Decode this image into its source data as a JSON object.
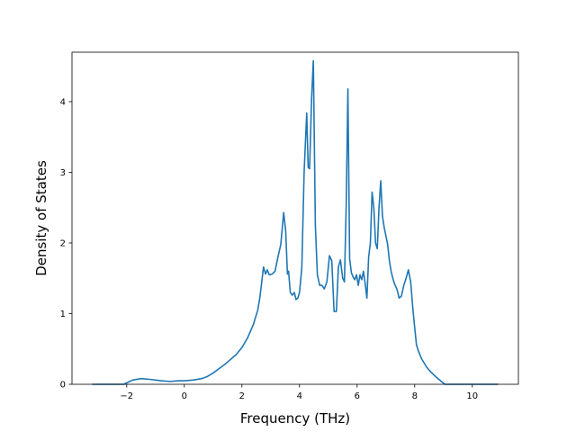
{
  "chart_data": {
    "type": "line",
    "title": "",
    "xlabel": "Frequency (THz)",
    "ylabel": "Density of States",
    "xlim": [
      -3.9,
      11.6
    ],
    "ylim": [
      0,
      4.7
    ],
    "xticks": [
      -2,
      0,
      2,
      4,
      6,
      8,
      10
    ],
    "yticks": [
      0,
      1,
      2,
      3,
      4
    ],
    "xtick_labels": [
      "−2",
      "0",
      "2",
      "4",
      "6",
      "8",
      "10"
    ],
    "ytick_labels": [
      "0",
      "1",
      "2",
      "3",
      "4"
    ],
    "grid": false,
    "legend": "none",
    "series": [
      {
        "color": "#1f77b4",
        "x": [
          -3.2,
          -2.1,
          -1.95,
          -1.8,
          -1.5,
          -1.2,
          -0.8,
          -0.5,
          -0.2,
          0,
          0.3,
          0.6,
          0.8,
          1.0,
          1.2,
          1.4,
          1.6,
          1.8,
          2.0,
          2.2,
          2.4,
          2.55,
          2.62,
          2.68,
          2.75,
          2.82,
          2.88,
          2.95,
          3.05,
          3.15,
          3.25,
          3.35,
          3.45,
          3.52,
          3.58,
          3.62,
          3.68,
          3.75,
          3.82,
          3.88,
          3.94,
          4.0,
          4.08,
          4.16,
          4.25,
          4.3,
          4.35,
          4.42,
          4.48,
          4.55,
          4.62,
          4.7,
          4.78,
          4.86,
          4.95,
          5.04,
          5.12,
          5.2,
          5.28,
          5.35,
          5.42,
          5.5,
          5.56,
          5.62,
          5.68,
          5.74,
          5.8,
          5.86,
          5.92,
          5.98,
          6.04,
          6.1,
          6.16,
          6.22,
          6.28,
          6.34,
          6.4,
          6.46,
          6.52,
          6.58,
          6.64,
          6.7,
          6.76,
          6.82,
          6.88,
          6.94,
          7.0,
          7.06,
          7.12,
          7.18,
          7.24,
          7.3,
          7.38,
          7.46,
          7.54,
          7.62,
          7.7,
          7.78,
          7.86,
          7.94,
          8.0,
          8.06,
          8.12,
          8.18,
          8.24,
          8.3,
          8.36,
          8.42,
          8.5,
          8.62,
          8.75,
          8.9,
          9.05,
          9.2,
          9.35,
          9.5,
          9.65,
          9.78,
          10.0,
          10.9
        ],
        "y": [
          0,
          0,
          0.03,
          0.06,
          0.08,
          0.07,
          0.05,
          0.04,
          0.05,
          0.05,
          0.06,
          0.08,
          0.11,
          0.16,
          0.22,
          0.28,
          0.35,
          0.42,
          0.52,
          0.66,
          0.85,
          1.05,
          1.22,
          1.42,
          1.66,
          1.56,
          1.62,
          1.55,
          1.56,
          1.6,
          1.8,
          1.98,
          2.43,
          2.17,
          1.56,
          1.6,
          1.3,
          1.26,
          1.3,
          1.2,
          1.22,
          1.3,
          1.65,
          3.0,
          3.84,
          3.07,
          3.05,
          4.05,
          4.58,
          2.25,
          1.55,
          1.4,
          1.4,
          1.35,
          1.45,
          1.82,
          1.75,
          1.03,
          1.03,
          1.66,
          1.76,
          1.5,
          1.45,
          2.5,
          4.18,
          1.78,
          1.58,
          1.52,
          1.48,
          1.55,
          1.4,
          1.55,
          1.48,
          1.6,
          1.42,
          1.22,
          1.8,
          2.0,
          2.72,
          2.5,
          2.0,
          1.92,
          2.5,
          2.88,
          2.38,
          2.22,
          2.1,
          1.98,
          1.75,
          1.6,
          1.5,
          1.42,
          1.35,
          1.22,
          1.25,
          1.4,
          1.5,
          1.62,
          1.45,
          1.05,
          0.8,
          0.56,
          0.48,
          0.42,
          0.36,
          0.32,
          0.28,
          0.24,
          0.2,
          0.15,
          0.1,
          0.05,
          0,
          0,
          0,
          0,
          0,
          0,
          0,
          0
        ]
      }
    ]
  }
}
